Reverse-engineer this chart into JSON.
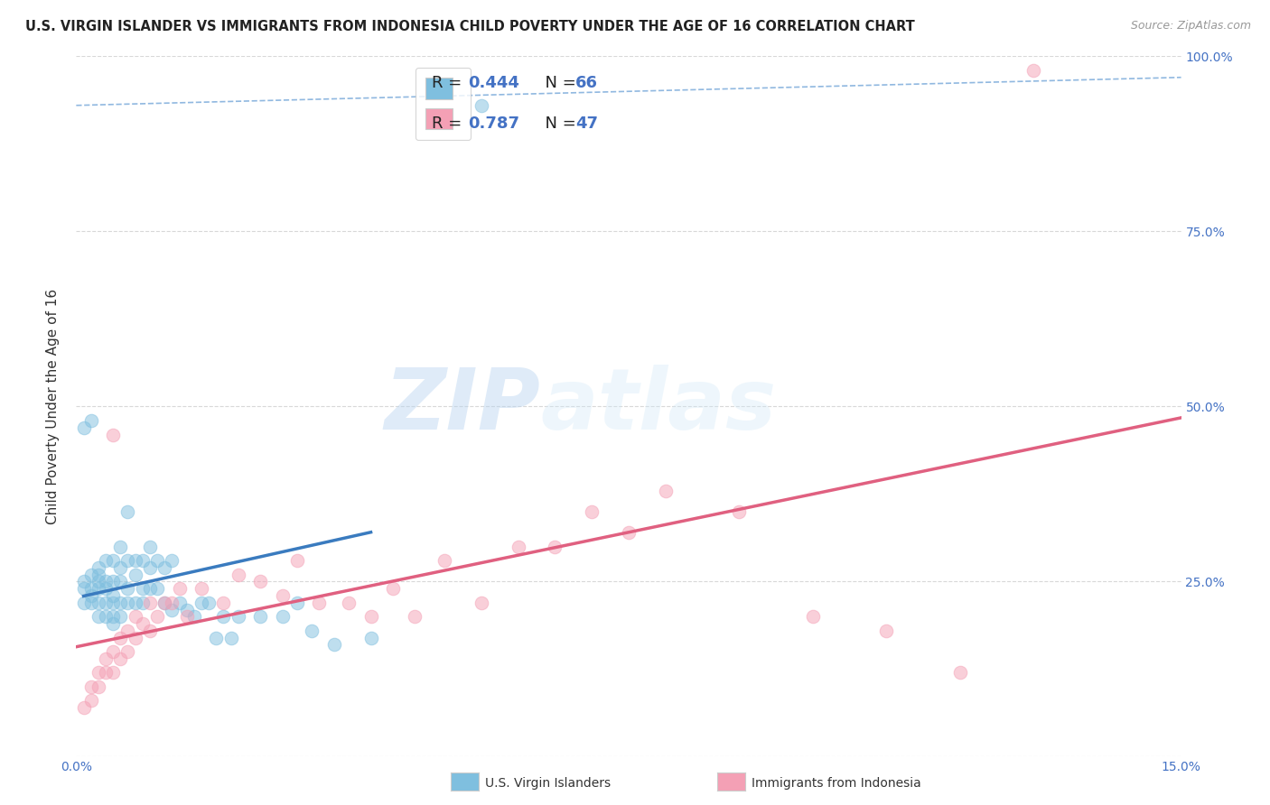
{
  "title": "U.S. VIRGIN ISLANDER VS IMMIGRANTS FROM INDONESIA CHILD POVERTY UNDER THE AGE OF 16 CORRELATION CHART",
  "source": "Source: ZipAtlas.com",
  "ylabel": "Child Poverty Under the Age of 16",
  "xlim": [
    0,
    0.15
  ],
  "ylim": [
    0,
    1.0
  ],
  "xticks": [
    0.0,
    0.05,
    0.1,
    0.15
  ],
  "xtick_labels": [
    "0.0%",
    "",
    "",
    "15.0%"
  ],
  "yticks": [
    0.0,
    0.25,
    0.5,
    0.75,
    1.0
  ],
  "ytick_right_labels": [
    "",
    "25.0%",
    "50.0%",
    "75.0%",
    "100.0%"
  ],
  "watermark_zip": "ZIP",
  "watermark_atlas": "atlas",
  "legend_label1": "U.S. Virgin Islanders",
  "legend_label2": "Immigrants from Indonesia",
  "R1": "0.444",
  "N1": "66",
  "R2": "0.787",
  "N2": "47",
  "color_blue": "#7fbfdf",
  "color_pink": "#f4a0b5",
  "color_blue_line": "#3a7bbf",
  "color_pink_line": "#e06080",
  "color_dashed": "#90b8e0",
  "background_color": "#ffffff",
  "grid_color": "#d8d8d8",
  "blue_scatter_x": [
    0.001,
    0.001,
    0.001,
    0.002,
    0.002,
    0.002,
    0.002,
    0.003,
    0.003,
    0.003,
    0.003,
    0.003,
    0.003,
    0.004,
    0.004,
    0.004,
    0.004,
    0.004,
    0.005,
    0.005,
    0.005,
    0.005,
    0.005,
    0.005,
    0.006,
    0.006,
    0.006,
    0.006,
    0.006,
    0.007,
    0.007,
    0.007,
    0.007,
    0.008,
    0.008,
    0.008,
    0.009,
    0.009,
    0.009,
    0.01,
    0.01,
    0.01,
    0.011,
    0.011,
    0.012,
    0.012,
    0.013,
    0.013,
    0.014,
    0.015,
    0.016,
    0.017,
    0.018,
    0.019,
    0.02,
    0.021,
    0.022,
    0.025,
    0.028,
    0.03,
    0.032,
    0.035,
    0.04,
    0.055,
    0.001,
    0.002
  ],
  "blue_scatter_y": [
    0.22,
    0.24,
    0.25,
    0.22,
    0.23,
    0.24,
    0.26,
    0.2,
    0.22,
    0.24,
    0.25,
    0.26,
    0.27,
    0.2,
    0.22,
    0.24,
    0.25,
    0.28,
    0.19,
    0.2,
    0.22,
    0.23,
    0.25,
    0.28,
    0.2,
    0.22,
    0.25,
    0.27,
    0.3,
    0.22,
    0.24,
    0.28,
    0.35,
    0.22,
    0.26,
    0.28,
    0.22,
    0.24,
    0.28,
    0.24,
    0.27,
    0.3,
    0.24,
    0.28,
    0.22,
    0.27,
    0.21,
    0.28,
    0.22,
    0.21,
    0.2,
    0.22,
    0.22,
    0.17,
    0.2,
    0.17,
    0.2,
    0.2,
    0.2,
    0.22,
    0.18,
    0.16,
    0.17,
    0.93,
    0.47,
    0.48
  ],
  "pink_scatter_x": [
    0.001,
    0.002,
    0.002,
    0.003,
    0.003,
    0.004,
    0.004,
    0.005,
    0.005,
    0.006,
    0.006,
    0.007,
    0.007,
    0.008,
    0.008,
    0.009,
    0.01,
    0.01,
    0.011,
    0.012,
    0.013,
    0.014,
    0.015,
    0.017,
    0.02,
    0.022,
    0.025,
    0.028,
    0.03,
    0.033,
    0.037,
    0.04,
    0.043,
    0.046,
    0.05,
    0.055,
    0.06,
    0.065,
    0.07,
    0.075,
    0.08,
    0.09,
    0.1,
    0.11,
    0.12,
    0.13,
    0.005
  ],
  "pink_scatter_y": [
    0.07,
    0.08,
    0.1,
    0.1,
    0.12,
    0.12,
    0.14,
    0.12,
    0.15,
    0.14,
    0.17,
    0.15,
    0.18,
    0.17,
    0.2,
    0.19,
    0.18,
    0.22,
    0.2,
    0.22,
    0.22,
    0.24,
    0.2,
    0.24,
    0.22,
    0.26,
    0.25,
    0.23,
    0.28,
    0.22,
    0.22,
    0.2,
    0.24,
    0.2,
    0.28,
    0.22,
    0.3,
    0.3,
    0.35,
    0.32,
    0.38,
    0.35,
    0.2,
    0.18,
    0.12,
    0.98,
    0.46
  ],
  "blue_line_x0": 0.001,
  "blue_line_x1": 0.04,
  "pink_line_x0": 0.0,
  "pink_line_x1": 0.15,
  "dashed_line_color": "#90b8e0",
  "title_fontsize": 10.5,
  "axis_label_fontsize": 11,
  "tick_fontsize": 10,
  "legend_fontsize": 12
}
